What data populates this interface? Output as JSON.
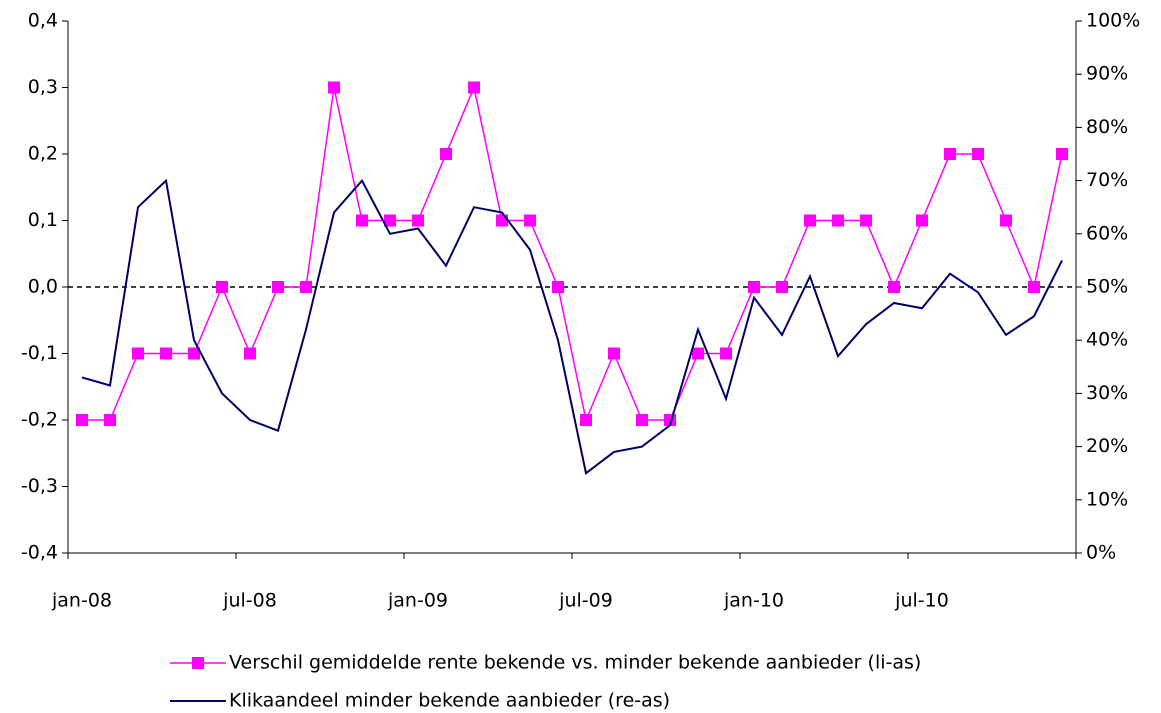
{
  "chart_data": {
    "type": "line",
    "categories": [
      "jan-08",
      null,
      null,
      null,
      null,
      null,
      "jul-08",
      null,
      null,
      null,
      null,
      null,
      "jan-09",
      null,
      null,
      null,
      null,
      null,
      "jul-09",
      null,
      null,
      null,
      null,
      null,
      "jan-10",
      null,
      null,
      null,
      null,
      null,
      "jul-10",
      null,
      null,
      null,
      null,
      null
    ],
    "series": [
      {
        "name": "Verschil gemiddelde rente bekende vs. minder bekende aanbieder (li-as)",
        "color": "#ff00ff",
        "marker": "square",
        "values": [
          -0.2,
          -0.2,
          -0.1,
          -0.1,
          -0.1,
          0.0,
          -0.1,
          0.0,
          0.0,
          0.3,
          0.1,
          0.1,
          0.1,
          0.2,
          0.3,
          0.1,
          0.1,
          0.0,
          -0.2,
          -0.1,
          -0.2,
          -0.2,
          -0.1,
          -0.1,
          0.0,
          0.0,
          0.1,
          0.1,
          0.1,
          0.0,
          0.1,
          0.2,
          0.2,
          0.1,
          0.0,
          0.2
        ]
      },
      {
        "name": "Klikaandeel minder bekende aanbieder (re-as)",
        "color": "#000066",
        "axis": "y2",
        "values": [
          33,
          31.5,
          65,
          70,
          40,
          30,
          25,
          23,
          42,
          64,
          70,
          60,
          61,
          54,
          65,
          64,
          57,
          40,
          15,
          19,
          20,
          24,
          42,
          29,
          48,
          41,
          52,
          37,
          43,
          47,
          46,
          52.5,
          49,
          41,
          44.5,
          55
        ]
      }
    ],
    "ylim": [
      -0.4,
      0.4
    ],
    "yticks": [
      {
        "value": -0.4,
        "label": "-0,4"
      },
      {
        "value": -0.3,
        "label": "-0,3"
      },
      {
        "value": -0.2,
        "label": "-0,2"
      },
      {
        "value": -0.1,
        "label": "-0,1"
      },
      {
        "value": 0.0,
        "label": "0,0"
      },
      {
        "value": 0.1,
        "label": "0,1"
      },
      {
        "value": 0.2,
        "label": "0,2"
      },
      {
        "value": 0.3,
        "label": "0,3"
      },
      {
        "value": 0.4,
        "label": "0,4"
      }
    ],
    "y2lim": [
      0,
      100
    ],
    "y2ticks": [
      {
        "value": 0,
        "label": "0%"
      },
      {
        "value": 10,
        "label": "10%"
      },
      {
        "value": 20,
        "label": "20%"
      },
      {
        "value": 30,
        "label": "30%"
      },
      {
        "value": 40,
        "label": "40%"
      },
      {
        "value": 50,
        "label": "50%"
      },
      {
        "value": 60,
        "label": "60%"
      },
      {
        "value": 70,
        "label": "70%"
      },
      {
        "value": 80,
        "label": "80%"
      },
      {
        "value": 90,
        "label": "90%"
      },
      {
        "value": 100,
        "label": "100%"
      }
    ],
    "legend": "bottom"
  }
}
